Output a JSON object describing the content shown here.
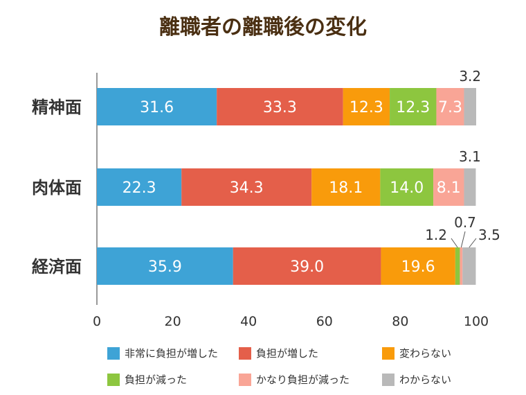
{
  "chart_data": {
    "type": "bar",
    "orientation": "horizontal",
    "stacked": true,
    "title": "離職者の離職後の変化",
    "xlabel": "",
    "ylabel": "",
    "xlim": [
      0,
      100
    ],
    "xticks": [
      0,
      20,
      40,
      60,
      80,
      100
    ],
    "categories": [
      "精神面",
      "肉体面",
      "経済面"
    ],
    "series": [
      {
        "name": "非常に負担が増した",
        "color": "#3ea3d6",
        "values": [
          31.6,
          22.3,
          35.9
        ]
      },
      {
        "name": "負担が増した",
        "color": "#e45f4a",
        "values": [
          33.3,
          34.3,
          39.0
        ]
      },
      {
        "name": "変わらない",
        "color": "#f99b0b",
        "values": [
          12.3,
          18.1,
          19.6
        ]
      },
      {
        "name": "負担が減った",
        "color": "#8dc63f",
        "values": [
          12.3,
          14.0,
          1.2
        ]
      },
      {
        "name": "かなり負担が減った",
        "color": "#f9a596",
        "values": [
          7.3,
          8.1,
          0.7
        ]
      },
      {
        "name": "わからない",
        "color": "#b9b9b9",
        "values": [
          3.2,
          3.1,
          3.5
        ]
      }
    ],
    "value_labels": [
      [
        "31.6",
        "33.3",
        "12.3",
        "12.3",
        "7.3",
        "3.2"
      ],
      [
        "22.3",
        "34.3",
        "18.1",
        "14.0",
        "8.1",
        "3.1"
      ],
      [
        "35.9",
        "39.0",
        "19.6",
        "1.2",
        "0.7",
        "3.5"
      ]
    ],
    "grid": false,
    "legend_position": "bottom"
  }
}
